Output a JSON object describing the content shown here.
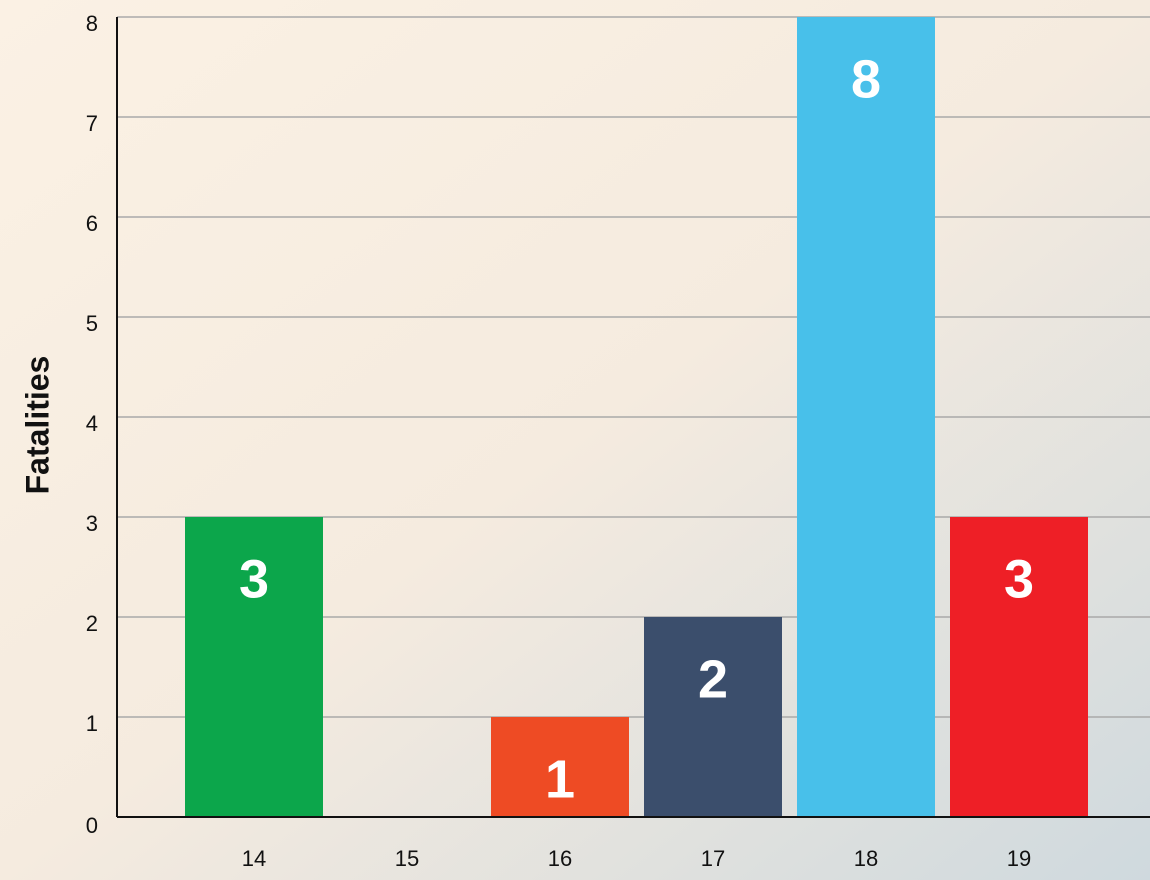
{
  "chart_data": {
    "type": "bar",
    "y_label": "Fatalities",
    "categories": [
      "14",
      "15",
      "16",
      "17",
      "18",
      "19"
    ],
    "values": [
      3,
      0,
      1,
      2,
      8,
      3
    ],
    "value_labels": [
      "3",
      null,
      "1",
      "2",
      "8",
      "3"
    ],
    "colors": [
      "#0ca64b",
      null,
      "#ee4b24",
      "#3b4e6c",
      "#48c0ea",
      "#ee1f26"
    ],
    "ylim": [
      0,
      8
    ],
    "yticks": [
      0,
      1,
      2,
      3,
      4,
      5,
      6,
      7,
      8
    ],
    "grid": true
  }
}
